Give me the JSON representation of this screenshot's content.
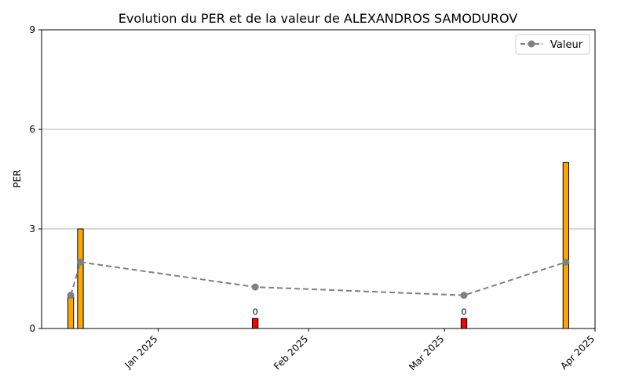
{
  "chart_data": {
    "type": "bar",
    "title": "Evolution du PER et de la valeur de ALEXANDROS SAMODUROV",
    "ylabel": "PER",
    "xlabel": "",
    "ylim": [
      0,
      9
    ],
    "yticks": [
      "0",
      "3",
      "6",
      "9"
    ],
    "xlim": [
      "2024-12-08",
      "2025-04-01"
    ],
    "xticks": [
      {
        "date": "2025-01-01",
        "label": "Jan 2025"
      },
      {
        "date": "2025-02-01",
        "label": "Feb 2025"
      },
      {
        "date": "2025-03-01",
        "label": "Mar 2025"
      },
      {
        "date": "2025-04-01",
        "label": "Apr 2025"
      }
    ],
    "grid": "horizontal",
    "legend_position": "top-right",
    "bars": [
      {
        "date": "2024-12-14",
        "value": 1,
        "color": "#ffa500",
        "label": ""
      },
      {
        "date": "2024-12-16",
        "value": 3,
        "color": "#ffa500",
        "label": ""
      },
      {
        "date": "2025-01-21",
        "value": 0.3,
        "color": "#ff0000",
        "label": "0"
      },
      {
        "date": "2025-03-05",
        "value": 0.3,
        "color": "#ff0000",
        "label": "0"
      },
      {
        "date": "2025-03-26",
        "value": 5,
        "color": "#ffa500",
        "label": ""
      }
    ],
    "series": [
      {
        "name": "Valeur",
        "color": "#808080",
        "style": "dashed",
        "points": [
          {
            "date": "2024-12-14",
            "value": 1
          },
          {
            "date": "2024-12-16",
            "value": 2
          },
          {
            "date": "2025-01-21",
            "value": 1.25
          },
          {
            "date": "2025-03-05",
            "value": 1
          },
          {
            "date": "2025-03-26",
            "value": 2
          }
        ]
      }
    ]
  }
}
